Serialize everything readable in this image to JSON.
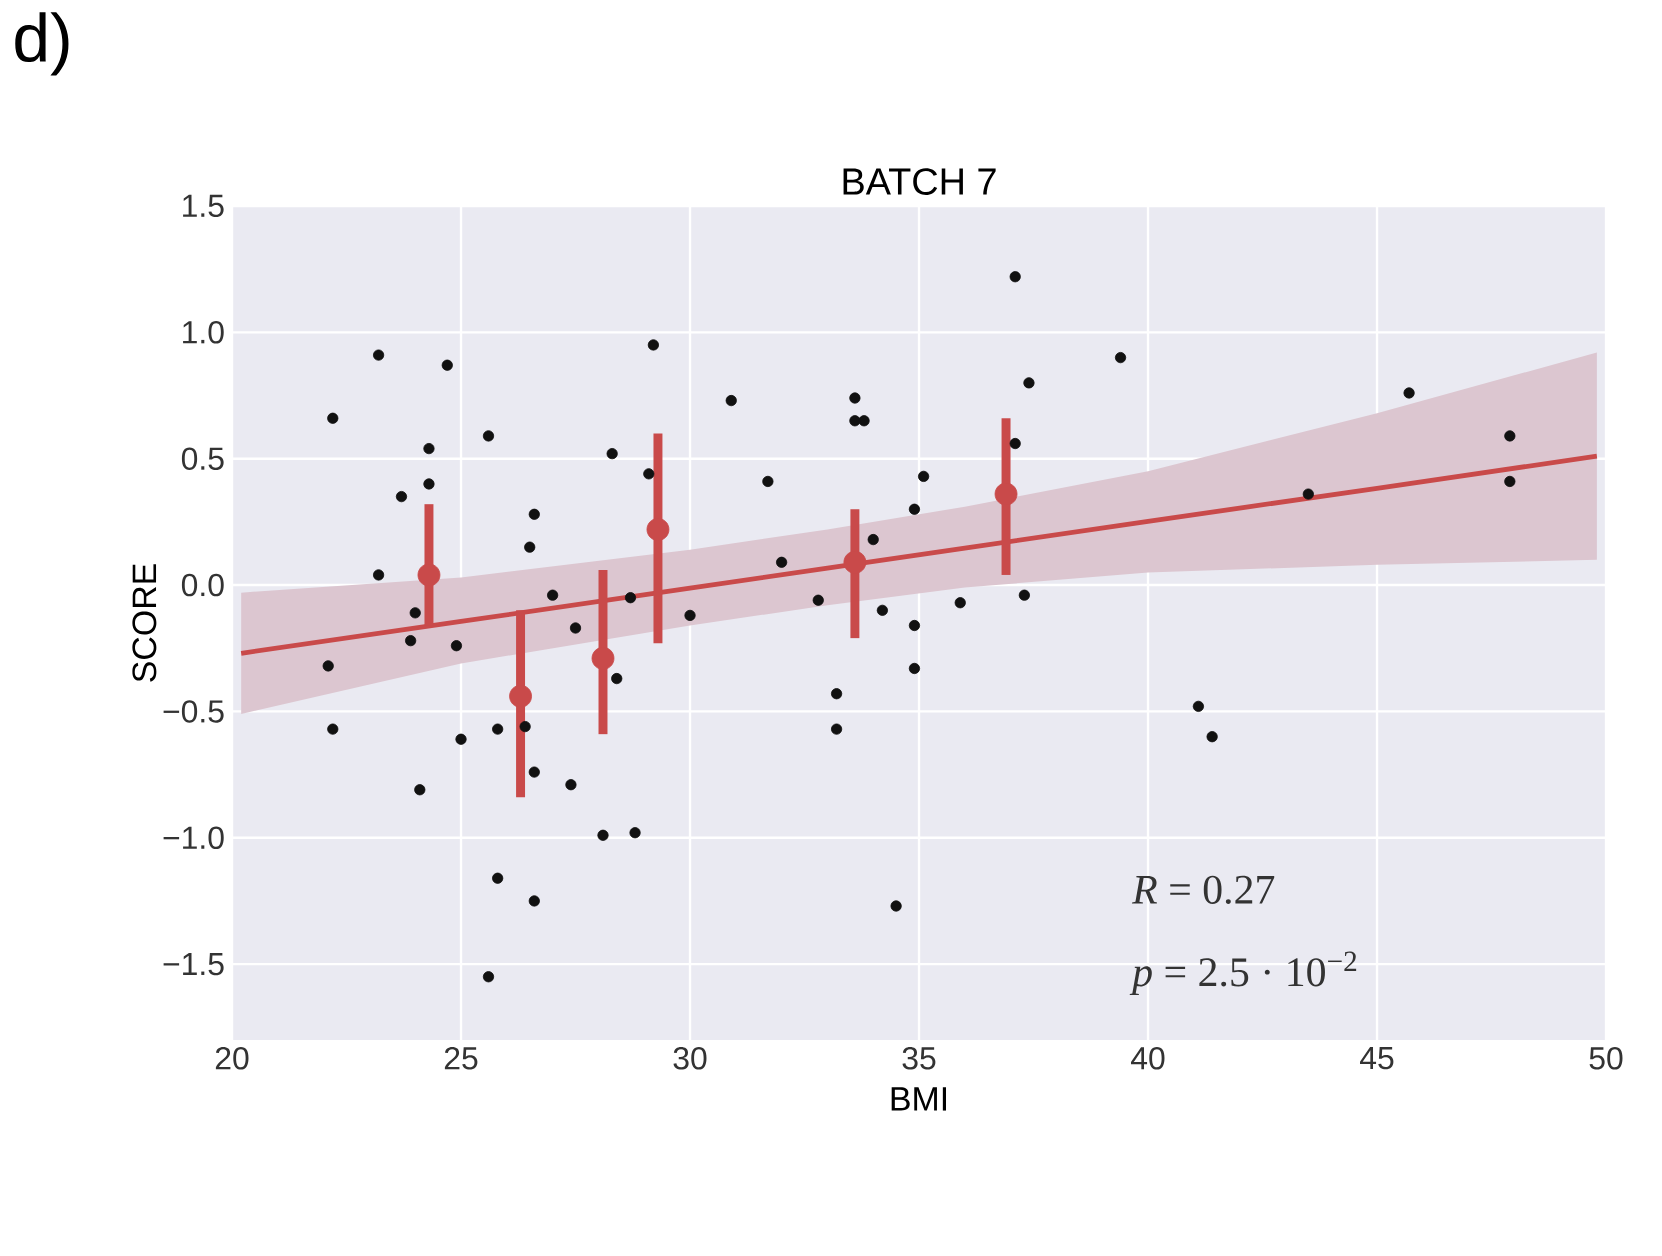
{
  "chart_data": {
    "type": "scatter",
    "title": "BATCH 7",
    "xlabel": "BMI",
    "ylabel": "SCORE",
    "annotations": [
      "d)",
      "*R* = 0.27",
      "*p* = 2.5 · 10$^{−2}$"
    ],
    "xlim": [
      20,
      50
    ],
    "ylim": [
      -1.8,
      1.5
    ],
    "xticks": [
      20,
      25,
      30,
      35,
      40,
      45,
      50
    ],
    "yticks": [
      {
        "value": -1.5,
        "label": "−1.5"
      },
      {
        "value": -1,
        "label": "−1.0"
      },
      {
        "value": -0.5,
        "label": "−0.5"
      },
      {
        "value": 0,
        "label": "0.0"
      },
      {
        "value": 0.5,
        "label": "0.5"
      },
      {
        "value": 1,
        "label": "1.0"
      },
      {
        "value": 1.5,
        "label": "1.5"
      }
    ],
    "grid": true,
    "series": [
      {
        "type": "line",
        "color": "#c94a4a",
        "marker": "none",
        "line_style": "solid",
        "x": [
          20.2,
          25,
          30,
          33,
          36,
          40,
          45,
          49.8
        ],
        "values": [
          -0.27,
          -0.144,
          -0.012,
          0.067,
          0.146,
          0.252,
          0.383,
          0.51
        ],
        "lower": [
          -0.51,
          -0.31,
          -0.16,
          -0.08,
          -0.01,
          0.05,
          0.08,
          0.1
        ],
        "upper": [
          -0.03,
          0.03,
          0.14,
          0.22,
          0.31,
          0.45,
          0.68,
          0.92
        ]
      },
      {
        "type": "scatter",
        "marker": "circle",
        "color": "#111111",
        "x": [
          23.2,
          24.7,
          29.2,
          22.2,
          25.6,
          24.3,
          28.3,
          24.3,
          23.7,
          29.1,
          26.6,
          26.5,
          23.2,
          27.0,
          24.0,
          23.9,
          24.9,
          27.5,
          28.7,
          30.0,
          22.1,
          28.4,
          22.2,
          25.0,
          25.8,
          26.4,
          26.6,
          27.4,
          24.1,
          28.1,
          28.8,
          25.8,
          26.6,
          25.6,
          37.1,
          39.4,
          30.9,
          33.6,
          33.8,
          33.6,
          37.4,
          31.7,
          35.1,
          34.9,
          37.1,
          34.0,
          32.0,
          32.8,
          34.2,
          34.9,
          35.9,
          37.3,
          34.9,
          33.2,
          33.2,
          34.5,
          45.7,
          47.9,
          47.9,
          43.5,
          41.1,
          41.4
        ],
        "values": [
          0.91,
          0.87,
          0.95,
          0.66,
          0.59,
          0.54,
          0.52,
          0.4,
          0.35,
          0.44,
          0.28,
          0.15,
          0.04,
          -0.04,
          -0.11,
          -0.22,
          -0.24,
          -0.17,
          -0.05,
          -0.12,
          -0.32,
          -0.37,
          -0.57,
          -0.61,
          -0.57,
          -0.56,
          -0.74,
          -0.79,
          -0.81,
          -0.99,
          -0.98,
          -1.16,
          -1.25,
          -1.55,
          1.22,
          0.9,
          0.73,
          0.74,
          0.65,
          0.65,
          0.8,
          0.41,
          0.43,
          0.3,
          0.56,
          0.18,
          0.09,
          -0.06,
          -0.1,
          -0.16,
          -0.07,
          -0.04,
          -0.33,
          -0.43,
          -0.57,
          -1.27,
          0.76,
          0.59,
          0.41,
          0.36,
          -0.48,
          -0.6
        ]
      },
      {
        "type": "scatter",
        "marker": "circle",
        "color": "#c94a4a",
        "x": [
          24.3,
          26.3,
          28.1,
          29.3,
          33.6,
          36.9
        ],
        "values": [
          0.04,
          -0.44,
          -0.29,
          0.22,
          0.09,
          0.36
        ],
        "errors": [
          [
            -0.16,
            0.32
          ],
          [
            -0.84,
            -0.1
          ],
          [
            -0.59,
            0.06
          ],
          [
            -0.23,
            0.6
          ],
          [
            -0.21,
            0.3
          ],
          [
            0.04,
            0.66
          ]
        ]
      }
    ]
  }
}
